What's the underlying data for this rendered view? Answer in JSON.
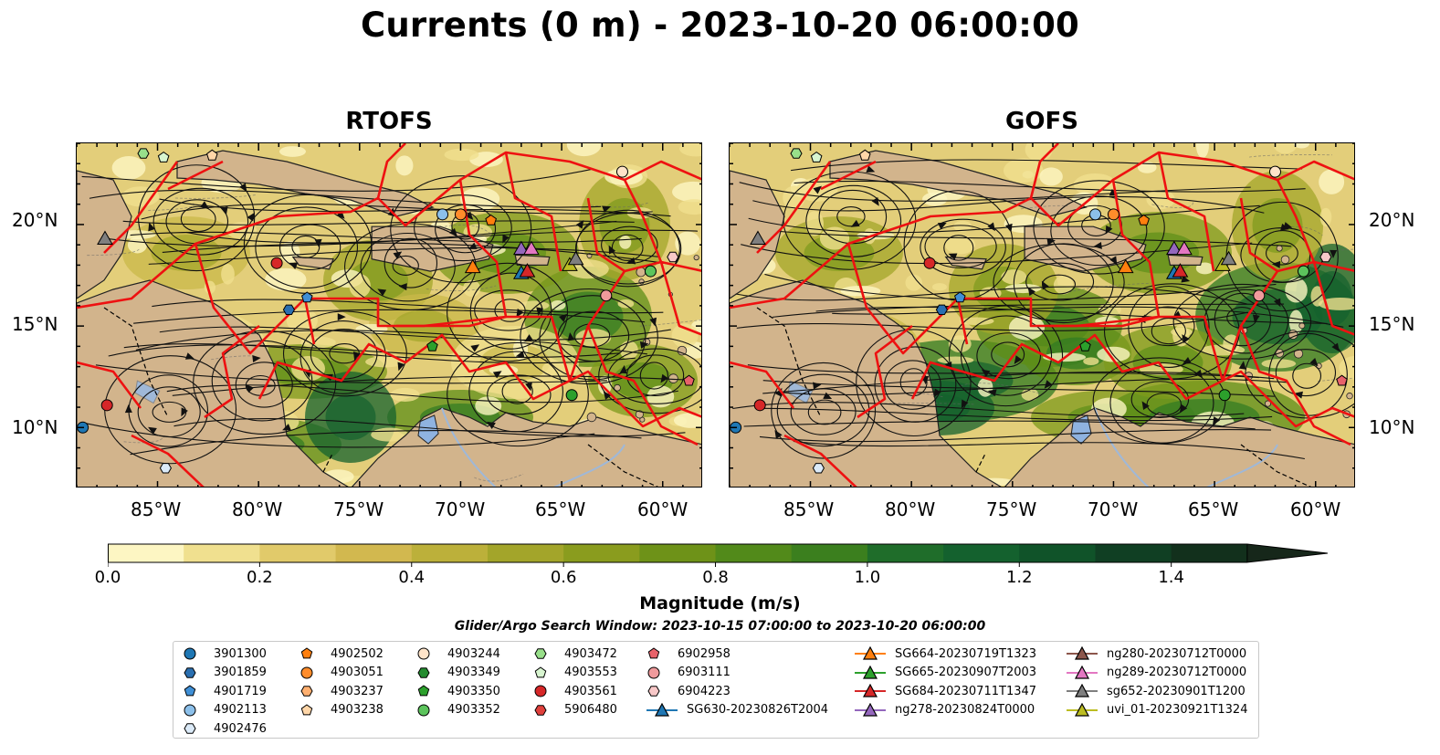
{
  "title": "Currents (0 m) - 2023-10-20 06:00:00",
  "panels": [
    {
      "title": "RTOFS"
    },
    {
      "title": "GOFS"
    }
  ],
  "lat_ticks": [
    "20°N",
    "15°N",
    "10°N"
  ],
  "lon_ticks": [
    "85°W",
    "80°W",
    "75°W",
    "70°W",
    "65°W",
    "60°W"
  ],
  "colorbar": {
    "label": "Magnitude (m/s)",
    "ticks": [
      "0.0",
      "0.2",
      "0.4",
      "0.6",
      "0.8",
      "1.0",
      "1.2",
      "1.4"
    ],
    "range": [
      0.0,
      1.6
    ],
    "extend": "max",
    "colors": [
      "#fdf6c3",
      "#f0e08f",
      "#e1ca6a",
      "#d2b84f",
      "#bcb03a",
      "#a3a52a",
      "#8a9c1e",
      "#6e9218",
      "#528a1a",
      "#3b7f1e",
      "#1f6d2a",
      "#14612e",
      "#105329",
      "#103f23",
      "#12301c",
      "#16271a"
    ]
  },
  "search_window": "Glider/Argo Search Window: 2023-10-15 07:00:00 to 2023-10-20 06:00:00",
  "legend": {
    "columns": [
      [
        {
          "label": "3901300",
          "marker": "circle",
          "color": "#1f77b4"
        },
        {
          "label": "3901859",
          "marker": "hexagon",
          "color": "#2a6fb0"
        },
        {
          "label": "4901719",
          "marker": "pentagon",
          "color": "#3f8fd6"
        },
        {
          "label": "4902113",
          "marker": "circle",
          "color": "#8cc0ea"
        },
        {
          "label": "4902476",
          "marker": "hexagon",
          "color": "#dbeaf8"
        }
      ],
      [
        {
          "label": "4902502",
          "marker": "pentagon",
          "color": "#ff7f0e"
        },
        {
          "label": "4903051",
          "marker": "circle",
          "color": "#ff8c2b"
        },
        {
          "label": "4903237",
          "marker": "hexagon",
          "color": "#ffb070"
        },
        {
          "label": "4903238",
          "marker": "pentagon",
          "color": "#ffd6a8"
        }
      ],
      [
        {
          "label": "4903244",
          "marker": "circle",
          "color": "#ffe4c9"
        },
        {
          "label": "4903349",
          "marker": "hexagon",
          "color": "#238b2e"
        },
        {
          "label": "4903350",
          "marker": "pentagon",
          "color": "#2ca02c"
        },
        {
          "label": "4903352",
          "marker": "circle",
          "color": "#5cc45c"
        }
      ],
      [
        {
          "label": "4903472",
          "marker": "hexagon",
          "color": "#98df8a"
        },
        {
          "label": "4903553",
          "marker": "pentagon",
          "color": "#d8f5d0"
        },
        {
          "label": "4903561",
          "marker": "circle",
          "color": "#d62728"
        },
        {
          "label": "5906480",
          "marker": "hexagon",
          "color": "#e0403c"
        }
      ],
      [
        {
          "label": "6902958",
          "marker": "pentagon",
          "color": "#e8626a"
        },
        {
          "label": "6903111",
          "marker": "circle",
          "color": "#f09a9c"
        },
        {
          "label": "6904223",
          "marker": "hexagon",
          "color": "#f8c8c8"
        },
        {
          "label": "SG630-20230826T2004",
          "marker": "triangle-line",
          "color": "#1f77b4"
        }
      ],
      [
        {
          "label": "SG664-20230719T1323",
          "marker": "triangle-line",
          "color": "#ff7f0e"
        },
        {
          "label": "SG665-20230907T2003",
          "marker": "triangle-line",
          "color": "#2ca02c"
        },
        {
          "label": "SG684-20230711T1347",
          "marker": "triangle-line",
          "color": "#d62728"
        },
        {
          "label": "ng278-20230824T0000",
          "marker": "triangle-line",
          "color": "#9467bd"
        }
      ],
      [
        {
          "label": "ng280-20230712T0000",
          "marker": "triangle-line",
          "color": "#8c564b"
        },
        {
          "label": "ng289-20230712T0000",
          "marker": "triangle-line",
          "color": "#e377c2"
        },
        {
          "label": "sg652-20230901T1200",
          "marker": "triangle-line",
          "color": "#7f7f7f"
        },
        {
          "label": "uvi_01-20230921T1324",
          "marker": "triangle-line",
          "color": "#bcbd22"
        }
      ]
    ]
  }
}
